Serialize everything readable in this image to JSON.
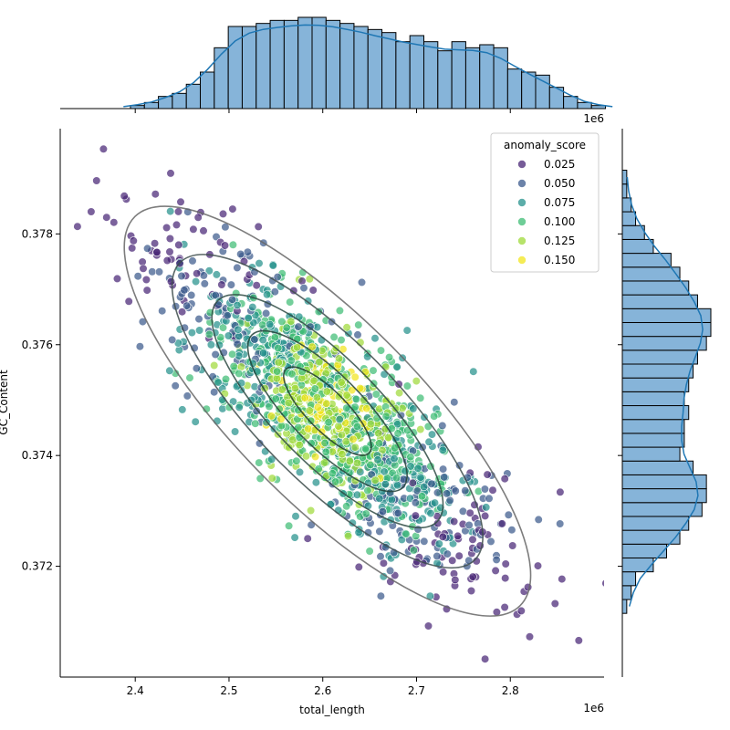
{
  "chart_data": {
    "type": "scatter",
    "kind": "jointplot",
    "xlabel": "total_length",
    "ylabel": "GC_Content",
    "x_offset_label": "1e6",
    "x_scale": 1000000,
    "xlim": [
      2.32,
      2.9
    ],
    "ylim": [
      0.37,
      0.3799
    ],
    "xticks": [
      2.4,
      2.5,
      2.6,
      2.7,
      2.8
    ],
    "xtick_labels": [
      "2.4",
      "2.5",
      "2.6",
      "2.7",
      "2.8"
    ],
    "yticks": [
      0.372,
      0.374,
      0.376,
      0.378
    ],
    "ytick_labels": [
      "0.372",
      "0.374",
      "0.376",
      "0.378"
    ],
    "legend": {
      "title": "anomaly_score",
      "placement": "top-right",
      "entries": [
        {
          "label": "0.025",
          "color": "#482576"
        },
        {
          "label": "0.050",
          "color": "#3b5a8c"
        },
        {
          "label": "0.075",
          "color": "#26918c"
        },
        {
          "label": "0.100",
          "color": "#3ebc74"
        },
        {
          "label": "0.125",
          "color": "#9fda3a"
        },
        {
          "label": "0.150",
          "color": "#f1e51d"
        }
      ]
    },
    "scatter_summary": {
      "n_points": 1500,
      "x_mean": 2.605,
      "x_sd": 0.085,
      "y_mean": 0.3748,
      "y_sd": 0.00145,
      "correlation": -0.8
    },
    "marginal_x_hist": {
      "bin_start": 2.38,
      "bin_width": 0.0149,
      "counts": [
        0,
        1,
        2,
        4,
        5,
        8,
        12,
        20,
        27,
        27,
        28,
        29,
        29,
        30,
        30,
        29,
        28,
        27,
        26,
        25,
        22,
        24,
        22,
        19,
        22,
        20,
        21,
        20,
        13,
        12,
        11,
        7,
        4,
        2,
        1,
        0
      ],
      "color": "#86b4d9",
      "kde_color": "#1f77b4"
    },
    "marginal_y_hist": {
      "bin_start": 0.37115,
      "bin_width": 0.00025,
      "counts": [
        1,
        2,
        3,
        7,
        10,
        13,
        15,
        18,
        19,
        19,
        16,
        13,
        14,
        14,
        15,
        14,
        15,
        16,
        17,
        19,
        20,
        20,
        17,
        15,
        13,
        11,
        7,
        5,
        3,
        2,
        1,
        1
      ],
      "color": "#86b4d9",
      "kde_color": "#1f77b4"
    }
  }
}
